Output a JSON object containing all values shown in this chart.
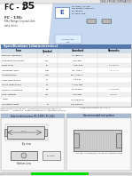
{
  "bg_color": "#f0f0f0",
  "white": "#ffffff",
  "header_blue_bg": "#c5d8f0",
  "header_top_strip": "#e8e8e8",
  "company_text": "SEIKO EPSON CORPORATION",
  "title_large": "35",
  "title_prefix": "FC - 1",
  "title_medium": "FC - 135",
  "subtitle": "KHz Range Crystal Unit",
  "logo_bg": "#dde8f5",
  "logo_border": "#5577aa",
  "logo_text_color": "#3355aa",
  "crystal_color": "#888888",
  "table_header_bg": "#5577aa",
  "table_header_text": "#ffffff",
  "table_col_header_bg": "#dce6f1",
  "table_row_alt": "#eeeeee",
  "table_border": "#aaaaaa",
  "section_header_bg": "#aabbd0",
  "section_header_text": "#000033",
  "drawing_bg": "#f8f8f8",
  "green_bar": "#00dd00",
  "gray_bar": "#cccccc",
  "footer_line_color": "#999999",
  "triangle_white": "#ffffff",
  "diag_line_color": "#cccccc"
}
